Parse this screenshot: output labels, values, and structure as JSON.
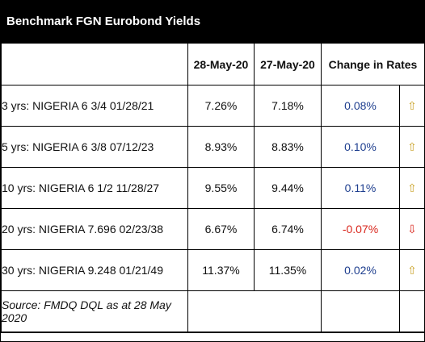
{
  "title": "Benchmark FGN Eurobond Yields",
  "headers": {
    "col1": "",
    "col2": "28-May-20",
    "col3": "27-May-20",
    "col4": "Change in Rates"
  },
  "rows": [
    {
      "name": "3 yrs: NIGERIA 6 3/4 01/28/21",
      "y1": "7.26%",
      "y2": "7.18%",
      "change": "0.08%",
      "direction": "up"
    },
    {
      "name": "5 yrs: NIGERIA 6 3/8 07/12/23",
      "y1": "8.93%",
      "y2": "8.83%",
      "change": "0.10%",
      "direction": "up"
    },
    {
      "name": "10 yrs: NIGERIA 6 1/2 11/28/27",
      "y1": "9.55%",
      "y2": "9.44%",
      "change": "0.11%",
      "direction": "up"
    },
    {
      "name": "20 yrs: NIGERIA 7.696 02/23/38",
      "y1": "6.67%",
      "y2": "6.74%",
      "change": "-0.07%",
      "direction": "down"
    },
    {
      "name": "30 yrs: NIGERIA 9.248 01/21/49",
      "y1": "11.37%",
      "y2": "11.35%",
      "change": "0.02%",
      "direction": "up"
    }
  ],
  "source": "Source: FMDQ DQL as at 28 May 2020",
  "colors": {
    "header_bg": "#000000",
    "positive_change": "#1f3f8f",
    "negative_change": "#d9261c",
    "up_arrow": "#c9a227",
    "down_arrow": "#d9261c"
  },
  "icons": {
    "up": "arrow-up-icon",
    "down": "arrow-down-icon"
  }
}
